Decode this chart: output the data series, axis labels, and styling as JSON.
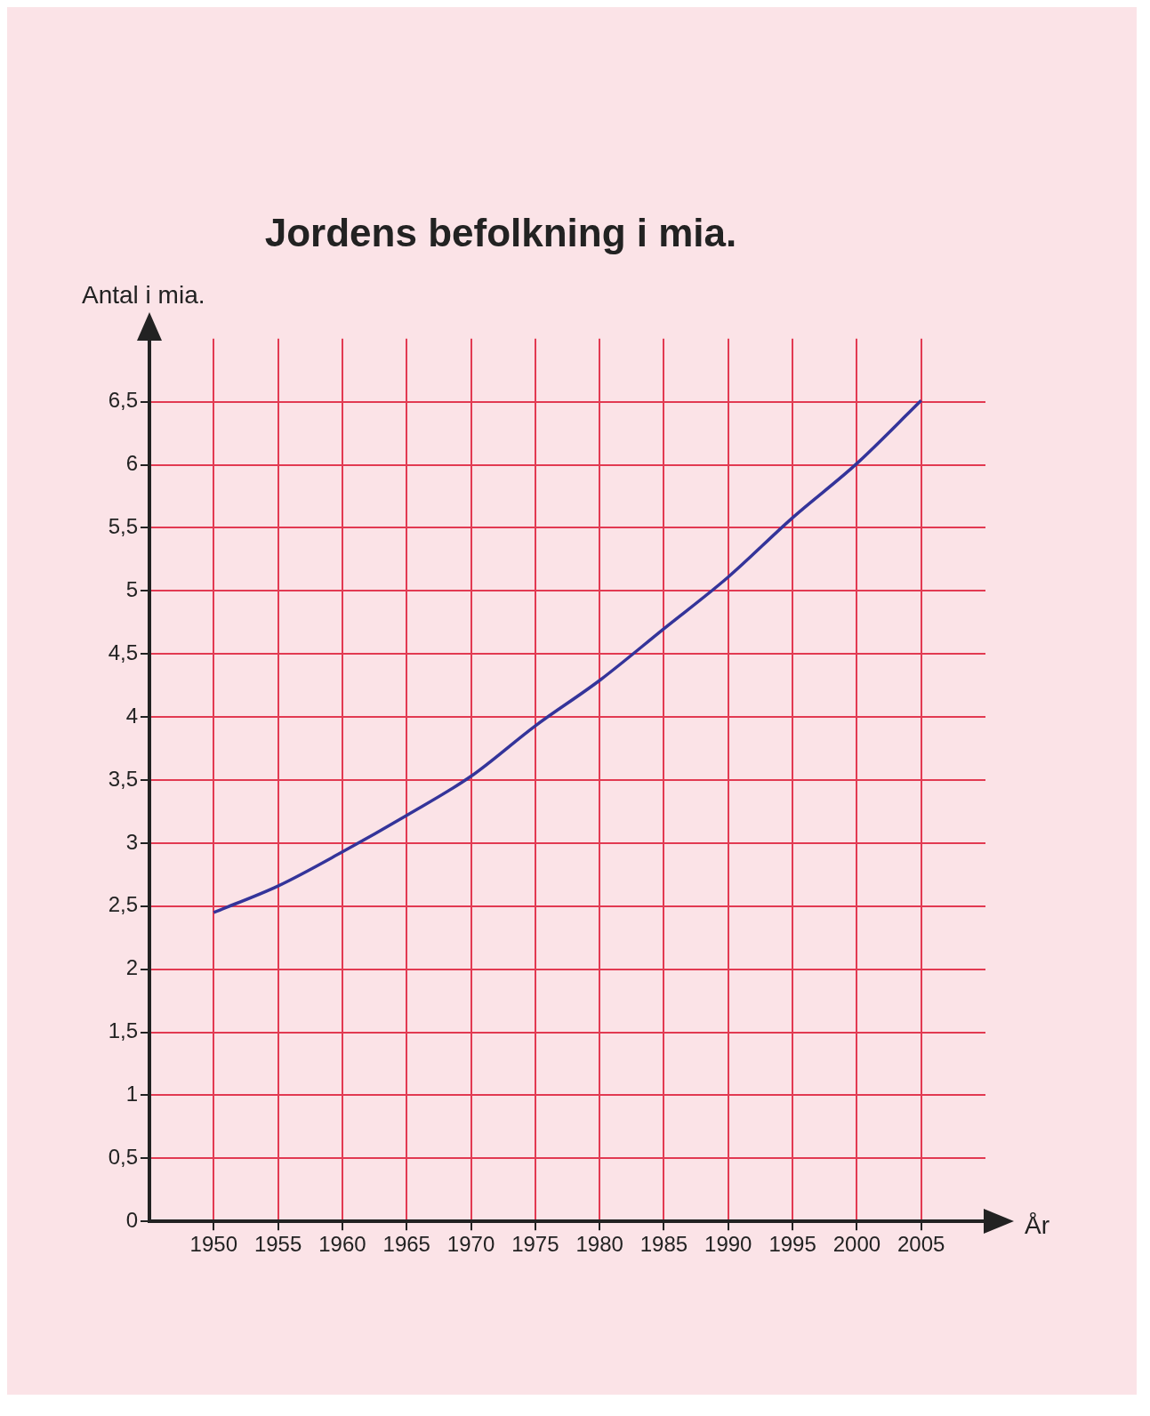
{
  "chart_data": {
    "type": "line",
    "title": "Jordens befolkning i mia.",
    "xlabel": "År",
    "ylabel": "Antal i mia.",
    "x": [
      1950,
      1955,
      1960,
      1965,
      1970,
      1975,
      1980,
      1985,
      1990,
      1995,
      2000,
      2005
    ],
    "series": [
      {
        "color": "#34349a",
        "values": [
          2.45,
          2.66,
          2.93,
          3.22,
          3.53,
          3.93,
          4.29,
          4.7,
          5.11,
          5.58,
          6.01,
          6.51
        ]
      }
    ],
    "xlim": [
      1945,
      2010
    ],
    "xticks": [
      1950,
      1955,
      1960,
      1965,
      1970,
      1975,
      1980,
      1985,
      1990,
      1995,
      2000,
      2005
    ],
    "ylim": [
      0,
      7
    ],
    "yticks": [
      0,
      {
        "value": 0.5,
        "label": "0,5"
      },
      1,
      {
        "value": 1.5,
        "label": "1,5"
      },
      2,
      {
        "value": 2.5,
        "label": "2,5"
      },
      3,
      {
        "value": 3.5,
        "label": "3,5"
      },
      4,
      {
        "value": 4.5,
        "label": "4,5"
      },
      5,
      {
        "value": 5.5,
        "label": "5,5"
      },
      6,
      {
        "value": 6.5,
        "label": "6,5"
      }
    ],
    "grid": true,
    "legend": false,
    "marker": "none",
    "line_style": "solid"
  }
}
